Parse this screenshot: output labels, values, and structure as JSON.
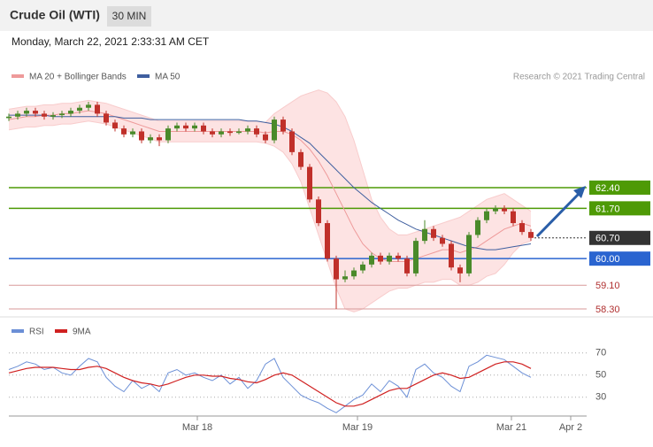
{
  "chart_data": {
    "type": "candlestick",
    "title": "Crude Oil (WTI)",
    "timeframe": "30 MIN",
    "subtitle": "Monday, March 22, 2021 2:33:31 AM CET",
    "copyright": "Research © 2021 Trading Central",
    "colors": {
      "up": "#4a8a2a",
      "down": "#c0302a",
      "band": "#fde3e3",
      "ma20": "#ee9a9a",
      "ma50": "#3f5f9f",
      "rsi": "#6b8fd6",
      "rsi_ma": "#d02020"
    },
    "x": [
      0,
      1,
      2,
      3,
      4,
      5,
      6,
      7,
      8,
      9,
      10,
      11,
      12,
      13,
      14,
      15,
      16,
      17,
      18,
      19,
      20,
      21,
      22,
      23,
      24,
      25,
      26,
      27,
      28,
      29,
      30,
      31,
      32,
      33,
      34,
      35,
      36,
      37,
      38,
      39,
      40,
      41,
      42,
      43,
      44,
      45,
      46,
      47,
      48,
      49,
      50,
      51,
      52,
      53,
      54,
      55,
      56,
      57,
      58,
      59
    ],
    "xlim": [
      -0.2,
      65.3
    ],
    "xticks": [
      {
        "value": 21.3,
        "label": "Mar 18"
      },
      {
        "value": 39.4,
        "label": "Mar 19"
      },
      {
        "value": 56.8,
        "label": "Mar 21"
      },
      {
        "value": 63.5,
        "label": "Apr 2"
      }
    ],
    "ylim": [
      58.12,
      65.9
    ],
    "candles": [
      [
        64.75,
        64.9,
        64.65,
        64.8
      ],
      [
        64.8,
        65.0,
        64.7,
        64.9
      ],
      [
        64.9,
        65.1,
        64.8,
        65.0
      ],
      [
        65.0,
        65.1,
        64.8,
        64.9
      ],
      [
        64.9,
        65.0,
        64.7,
        64.8
      ],
      [
        64.8,
        64.95,
        64.7,
        64.85
      ],
      [
        64.85,
        65.0,
        64.75,
        64.9
      ],
      [
        64.9,
        65.1,
        64.8,
        65.0
      ],
      [
        65.0,
        65.2,
        64.9,
        65.1
      ],
      [
        65.1,
        65.3,
        65.0,
        65.2
      ],
      [
        65.2,
        65.3,
        64.8,
        64.9
      ],
      [
        64.9,
        65.0,
        64.5,
        64.6
      ],
      [
        64.6,
        64.7,
        64.3,
        64.4
      ],
      [
        64.4,
        64.5,
        64.1,
        64.2
      ],
      [
        64.2,
        64.4,
        64.1,
        64.3
      ],
      [
        64.3,
        64.4,
        63.9,
        64.0
      ],
      [
        64.0,
        64.2,
        63.9,
        64.1
      ],
      [
        64.1,
        64.2,
        63.8,
        64.0
      ],
      [
        64.0,
        64.5,
        63.9,
        64.4
      ],
      [
        64.4,
        64.6,
        64.3,
        64.5
      ],
      [
        64.5,
        64.6,
        64.3,
        64.4
      ],
      [
        64.4,
        64.6,
        64.3,
        64.5
      ],
      [
        64.5,
        64.6,
        64.2,
        64.3
      ],
      [
        64.3,
        64.4,
        64.1,
        64.2
      ],
      [
        64.2,
        64.4,
        64.1,
        64.3
      ],
      [
        64.3,
        64.4,
        64.15,
        64.25
      ],
      [
        64.25,
        64.4,
        64.2,
        64.3
      ],
      [
        64.3,
        64.5,
        64.2,
        64.4
      ],
      [
        64.4,
        64.5,
        64.1,
        64.2
      ],
      [
        64.2,
        64.3,
        63.9,
        64.0
      ],
      [
        64.0,
        64.8,
        63.9,
        64.7
      ],
      [
        64.7,
        64.8,
        64.2,
        64.3
      ],
      [
        64.3,
        64.4,
        63.5,
        63.6
      ],
      [
        63.6,
        63.7,
        63.0,
        63.1
      ],
      [
        63.1,
        63.2,
        61.9,
        62.0
      ],
      [
        62.0,
        62.1,
        61.1,
        61.2
      ],
      [
        61.2,
        61.3,
        59.9,
        60.0
      ],
      [
        60.0,
        60.1,
        58.3,
        59.3
      ],
      [
        59.3,
        59.6,
        59.2,
        59.4
      ],
      [
        59.4,
        59.7,
        59.3,
        59.6
      ],
      [
        59.6,
        59.9,
        59.5,
        59.8
      ],
      [
        59.8,
        60.2,
        59.7,
        60.1
      ],
      [
        60.1,
        60.2,
        59.8,
        59.9
      ],
      [
        59.9,
        60.2,
        59.8,
        60.1
      ],
      [
        60.1,
        60.2,
        59.9,
        60.0
      ],
      [
        60.0,
        60.1,
        59.4,
        59.5
      ],
      [
        59.5,
        60.7,
        59.4,
        60.6
      ],
      [
        60.6,
        61.3,
        60.5,
        61.0
      ],
      [
        61.0,
        61.1,
        60.6,
        60.7
      ],
      [
        60.7,
        60.8,
        60.4,
        60.5
      ],
      [
        60.5,
        60.6,
        59.6,
        59.7
      ],
      [
        59.7,
        59.8,
        59.2,
        59.5
      ],
      [
        59.5,
        60.9,
        59.4,
        60.8
      ],
      [
        60.8,
        61.4,
        60.7,
        61.3
      ],
      [
        61.3,
        61.7,
        61.2,
        61.6
      ],
      [
        61.6,
        61.8,
        61.5,
        61.7
      ],
      [
        61.7,
        61.8,
        61.5,
        61.6
      ],
      [
        61.6,
        61.7,
        61.1,
        61.2
      ],
      [
        61.2,
        61.3,
        60.8,
        60.9
      ],
      [
        60.9,
        61.0,
        60.6,
        60.7
      ]
    ],
    "overlays": [
      {
        "name": "MA 20 + Bollinger Bands",
        "values": [
          64.7,
          64.75,
          64.8,
          64.8,
          64.85,
          64.85,
          64.9,
          64.9,
          64.95,
          65.0,
          64.95,
          64.9,
          64.8,
          64.7,
          64.6,
          64.5,
          64.4,
          64.3,
          64.3,
          64.3,
          64.3,
          64.3,
          64.3,
          64.3,
          64.3,
          64.3,
          64.3,
          64.3,
          64.3,
          64.25,
          64.3,
          64.3,
          64.2,
          64.0,
          63.7,
          63.3,
          62.8,
          62.2,
          61.6,
          61.0,
          60.5,
          60.2,
          60.0,
          59.9,
          59.9,
          59.9,
          60.0,
          60.1,
          60.2,
          60.3,
          60.3,
          60.2,
          60.3,
          60.4,
          60.6,
          60.8,
          61.0,
          61.1,
          61.2,
          61.1
        ],
        "upper": [
          65.05,
          65.1,
          65.15,
          65.15,
          65.2,
          65.2,
          65.25,
          65.25,
          65.3,
          65.35,
          65.3,
          65.25,
          65.15,
          65.05,
          64.95,
          64.85,
          64.75,
          64.65,
          64.65,
          64.65,
          64.65,
          64.65,
          64.65,
          64.65,
          64.65,
          64.65,
          64.65,
          64.65,
          64.65,
          64.6,
          64.9,
          65.1,
          65.3,
          65.5,
          65.6,
          65.7,
          65.6,
          65.3,
          64.8,
          64.0,
          63.0,
          62.0,
          61.4,
          61.0,
          60.8,
          60.8,
          60.9,
          61.0,
          61.1,
          61.2,
          61.3,
          61.4,
          61.6,
          61.8,
          62.0,
          62.1,
          62.2,
          62.0,
          61.8,
          61.6
        ],
        "lower": [
          64.35,
          64.4,
          64.45,
          64.45,
          64.5,
          64.5,
          64.55,
          64.55,
          64.6,
          64.65,
          64.6,
          64.55,
          64.45,
          64.35,
          64.25,
          64.15,
          64.05,
          63.95,
          63.95,
          63.95,
          63.95,
          63.95,
          63.95,
          63.95,
          63.95,
          63.95,
          63.95,
          63.95,
          63.95,
          63.9,
          63.8,
          63.6,
          63.2,
          62.6,
          61.7,
          60.8,
          59.9,
          59.0,
          58.3,
          58.2,
          58.3,
          58.5,
          58.7,
          58.9,
          59.0,
          59.0,
          59.1,
          59.2,
          59.2,
          59.3,
          59.3,
          59.1,
          59.1,
          59.2,
          59.4,
          59.5,
          59.8,
          60.2,
          60.5,
          60.6
        ]
      },
      {
        "name": "MA 50",
        "values": [
          64.85,
          64.85,
          64.85,
          64.85,
          64.85,
          64.8,
          64.8,
          64.8,
          64.8,
          64.8,
          64.8,
          64.8,
          64.8,
          64.75,
          64.75,
          64.75,
          64.7,
          64.7,
          64.7,
          64.7,
          64.7,
          64.7,
          64.7,
          64.7,
          64.7,
          64.7,
          64.7,
          64.65,
          64.65,
          64.6,
          64.55,
          64.45,
          64.3,
          64.1,
          63.9,
          63.6,
          63.3,
          63.0,
          62.7,
          62.4,
          62.15,
          61.9,
          61.7,
          61.5,
          61.3,
          61.15,
          61.0,
          60.9,
          60.8,
          60.7,
          60.6,
          60.5,
          60.4,
          60.35,
          60.3,
          60.3,
          60.35,
          60.4,
          60.45,
          60.5
        ]
      }
    ],
    "levels": [
      {
        "value": 62.4,
        "label": "62.40",
        "color": "#4e9a06",
        "box": true,
        "dotted": false
      },
      {
        "value": 61.7,
        "label": "61.70",
        "color": "#4e9a06",
        "box": true,
        "dotted": false
      },
      {
        "value": 60.7,
        "label": "60.70",
        "color": "#333333",
        "box": true,
        "dotted": true
      },
      {
        "value": 60.0,
        "label": "60.00",
        "color": "#2a64d0",
        "box": true,
        "dotted": false
      },
      {
        "value": 59.1,
        "label": "59.10",
        "color": "#b03030",
        "box": false,
        "dotted": false
      },
      {
        "value": 58.3,
        "label": "58.30",
        "color": "#b03030",
        "box": false,
        "dotted": false
      }
    ],
    "rsi": {
      "ylim": [
        13,
        81
      ],
      "yticks": [
        30,
        50,
        70
      ],
      "series": [
        {
          "name": "RSI",
          "values": [
            55,
            58,
            62,
            60,
            55,
            57,
            52,
            50,
            58,
            65,
            62,
            48,
            40,
            35,
            45,
            38,
            42,
            35,
            52,
            55,
            50,
            52,
            48,
            45,
            50,
            42,
            48,
            38,
            45,
            60,
            65,
            48,
            40,
            32,
            28,
            25,
            20,
            16,
            22,
            28,
            32,
            42,
            35,
            45,
            40,
            30,
            55,
            60,
            52,
            48,
            40,
            35,
            58,
            62,
            68,
            66,
            64,
            58,
            52,
            48
          ]
        },
        {
          "name": "9MA",
          "values": [
            52,
            54,
            56,
            57,
            57,
            57,
            56,
            55,
            55,
            57,
            58,
            56,
            52,
            48,
            45,
            43,
            42,
            40,
            42,
            45,
            48,
            50,
            50,
            49,
            49,
            47,
            46,
            44,
            43,
            46,
            50,
            52,
            50,
            45,
            40,
            35,
            30,
            25,
            22,
            22,
            24,
            28,
            32,
            36,
            38,
            38,
            42,
            46,
            50,
            52,
            50,
            47,
            48,
            52,
            56,
            60,
            62,
            62,
            60,
            56
          ]
        }
      ]
    }
  }
}
